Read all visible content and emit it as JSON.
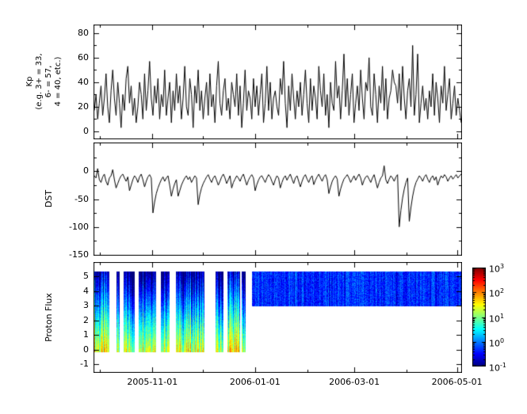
{
  "figure": {
    "background": "#ffffff",
    "axis_color": "#000000",
    "line_color": "#000000"
  },
  "xaxis": {
    "lim": [
      0,
      219
    ],
    "major_ticks": [
      {
        "day": 35,
        "label": "2005-11-01"
      },
      {
        "day": 96,
        "label": "2006-01-01"
      },
      {
        "day": 155,
        "label": "2006-03-01"
      },
      {
        "day": 216,
        "label": "2006-05-01"
      }
    ],
    "minor_ticks": [
      4,
      65,
      127,
      186
    ]
  },
  "chart_data": [
    {
      "type": "line",
      "name": "kp-index",
      "title": "",
      "ylabel": "Kp\n(e.g. 3+ = 33,\n6- = 57,\n4 = 40, etc.)",
      "ylim": [
        -6.5,
        87
      ],
      "yticks": [
        0,
        20,
        40,
        60,
        80
      ],
      "yminors": [
        10,
        30,
        50,
        70
      ],
      "x_range_days": [
        0,
        219
      ],
      "values": [
        17,
        30,
        10,
        23,
        37,
        13,
        27,
        47,
        20,
        7,
        33,
        50,
        27,
        13,
        40,
        23,
        3,
        30,
        17,
        43,
        53,
        23,
        37,
        13,
        27,
        7,
        20,
        40,
        30,
        10,
        47,
        17,
        33,
        57,
        27,
        13,
        37,
        23,
        43,
        10,
        30,
        20,
        50,
        13,
        27,
        40,
        7,
        33,
        17,
        47,
        23,
        37,
        10,
        27,
        53,
        20,
        13,
        43,
        30,
        3,
        37,
        23,
        50,
        17,
        33,
        10,
        27,
        40,
        13,
        47,
        20,
        30,
        7,
        37,
        57,
        23,
        13,
        33,
        43,
        17,
        27,
        10,
        40,
        30,
        20,
        47,
        13,
        37,
        3,
        23,
        50,
        17,
        33,
        27,
        10,
        43,
        20,
        37,
        13,
        30,
        47,
        7,
        23,
        53,
        17,
        40,
        10,
        27,
        33,
        20,
        13,
        43,
        30,
        57,
        23,
        3,
        37,
        17,
        47,
        27,
        10,
        33,
        20,
        40,
        13,
        30,
        50,
        23,
        7,
        43,
        17,
        37,
        27,
        10,
        53,
        33,
        20,
        47,
        13,
        30,
        3,
        40,
        23,
        17,
        57,
        27,
        37,
        10,
        33,
        63,
        20,
        43,
        13,
        30,
        47,
        7,
        23,
        37,
        17,
        50,
        27,
        10,
        40,
        33,
        60,
        20,
        13,
        47,
        30,
        7,
        37,
        23,
        53,
        17,
        43,
        10,
        27,
        33,
        50,
        40,
        37,
        23,
        47,
        17,
        53,
        27,
        10,
        33,
        43,
        20,
        70,
        13,
        30,
        63,
        7,
        23,
        37,
        17,
        27,
        10,
        33,
        20,
        47,
        13,
        40,
        27,
        7,
        37,
        23,
        53,
        17,
        30,
        43,
        10,
        23,
        37,
        13,
        27,
        17,
        7
      ]
    },
    {
      "type": "line",
      "name": "dst-index",
      "title": "",
      "ylabel": "DST",
      "ylim": [
        -152,
        52
      ],
      "yticks": [
        0,
        -50,
        -100,
        -150
      ],
      "yminors": [
        25,
        -25,
        -75,
        -125
      ],
      "x_range_days": [
        0,
        219
      ],
      "values": [
        -8,
        -12,
        5,
        -15,
        -20,
        -10,
        -5,
        -18,
        -25,
        -12,
        -8,
        3,
        -15,
        -30,
        -22,
        -14,
        -8,
        -5,
        -12,
        -18,
        -10,
        -35,
        -25,
        -15,
        -8,
        -12,
        -20,
        -10,
        -5,
        -15,
        -28,
        -18,
        -10,
        -6,
        -12,
        -75,
        -55,
        -40,
        -30,
        -22,
        -15,
        -10,
        -18,
        -12,
        -8,
        -25,
        -45,
        -32,
        -22,
        -15,
        -45,
        -35,
        -25,
        -18,
        -12,
        -8,
        -15,
        -10,
        -20,
        -14,
        -8,
        -12,
        -60,
        -42,
        -30,
        -22,
        -16,
        -10,
        -6,
        -14,
        -20,
        -12,
        -8,
        -16,
        -25,
        -18,
        -10,
        -5,
        -12,
        -22,
        -15,
        -8,
        -30,
        -20,
        -14,
        -8,
        -12,
        -18,
        -10,
        -5,
        -15,
        -25,
        -16,
        -10,
        -6,
        -12,
        -35,
        -24,
        -16,
        -10,
        -8,
        -14,
        -20,
        -12,
        -6,
        -10,
        -18,
        -25,
        -15,
        -8,
        -12,
        -30,
        -20,
        -12,
        -8,
        -16,
        -10,
        -5,
        -14,
        -22,
        -12,
        -8,
        -18,
        -28,
        -18,
        -10,
        -6,
        -14,
        -20,
        -12,
        -8,
        -24,
        -16,
        -10,
        -5,
        -12,
        -18,
        -10,
        -6,
        -15,
        -40,
        -28,
        -18,
        -12,
        -8,
        -14,
        -45,
        -32,
        -22,
        -14,
        -10,
        -6,
        -12,
        -20,
        -14,
        -8,
        -16,
        -10,
        -5,
        -12,
        -25,
        -16,
        -10,
        -8,
        -14,
        -20,
        -12,
        -6,
        -18,
        -30,
        -20,
        -12,
        -8,
        10,
        -15,
        -22,
        -14,
        -8,
        -12,
        -18,
        -10,
        -6,
        -100,
        -70,
        -48,
        -32,
        -20,
        -12,
        -90,
        -65,
        -45,
        -30,
        -20,
        -14,
        -8,
        -12,
        -18,
        -10,
        -6,
        -14,
        -20,
        -12,
        -8,
        -16,
        -10,
        -25,
        -15,
        -8,
        -12,
        -6,
        -10,
        -18,
        -12,
        -8,
        -14,
        -10,
        -6,
        -12,
        -8,
        -5
      ]
    },
    {
      "type": "heatmap",
      "name": "proton-flux-spectrogram",
      "title": "",
      "ylabel": "Proton Flux",
      "ylim": [
        -1.6,
        6.0
      ],
      "yticks": [
        -1,
        0,
        1,
        2,
        3,
        4,
        5
      ],
      "yminors": [],
      "x_range_days": [
        0,
        219
      ],
      "value_scale": "log10",
      "full_y_extent": [
        -0.15,
        5.35
      ],
      "segments": [
        {
          "d0": 0,
          "d1": 9,
          "kind": "full",
          "peak": 1.4
        },
        {
          "d0": 9,
          "d1": 13.5,
          "kind": "gap"
        },
        {
          "d0": 13.5,
          "d1": 15.5,
          "kind": "full",
          "peak": 1.0
        },
        {
          "d0": 15.5,
          "d1": 17.5,
          "kind": "gap"
        },
        {
          "d0": 17.5,
          "d1": 24.5,
          "kind": "full",
          "peak": 1.2
        },
        {
          "d0": 24.5,
          "d1": 26.5,
          "kind": "gap"
        },
        {
          "d0": 26.5,
          "d1": 37,
          "kind": "full",
          "peak": 1.5
        },
        {
          "d0": 37,
          "d1": 40,
          "kind": "gap"
        },
        {
          "d0": 40,
          "d1": 45,
          "kind": "full",
          "peak": 1.1
        },
        {
          "d0": 45,
          "d1": 49,
          "kind": "gap"
        },
        {
          "d0": 49,
          "d1": 66,
          "kind": "full",
          "peak": 1.3
        },
        {
          "d0": 66,
          "d1": 72.5,
          "kind": "gap"
        },
        {
          "d0": 72.5,
          "d1": 77,
          "kind": "full",
          "peak": 1.1
        },
        {
          "d0": 77,
          "d1": 79.5,
          "kind": "gap"
        },
        {
          "d0": 79.5,
          "d1": 87,
          "kind": "full",
          "peak": 1.5
        },
        {
          "d0": 87,
          "d1": 88,
          "kind": "gap"
        },
        {
          "d0": 88,
          "d1": 90.5,
          "kind": "full",
          "peak": 1.2
        },
        {
          "d0": 90.5,
          "d1": 94,
          "kind": "gap"
        },
        {
          "d0": 94,
          "d1": 219,
          "kind": "band",
          "band_range": [
            3.0,
            5.35
          ],
          "peak": -0.35
        }
      ],
      "colorbar": {
        "scale": "log",
        "range_exponents": [
          -1,
          3
        ],
        "tick_exponents": [
          3,
          2,
          1,
          0,
          -1
        ],
        "colormap": "jet"
      }
    }
  ]
}
